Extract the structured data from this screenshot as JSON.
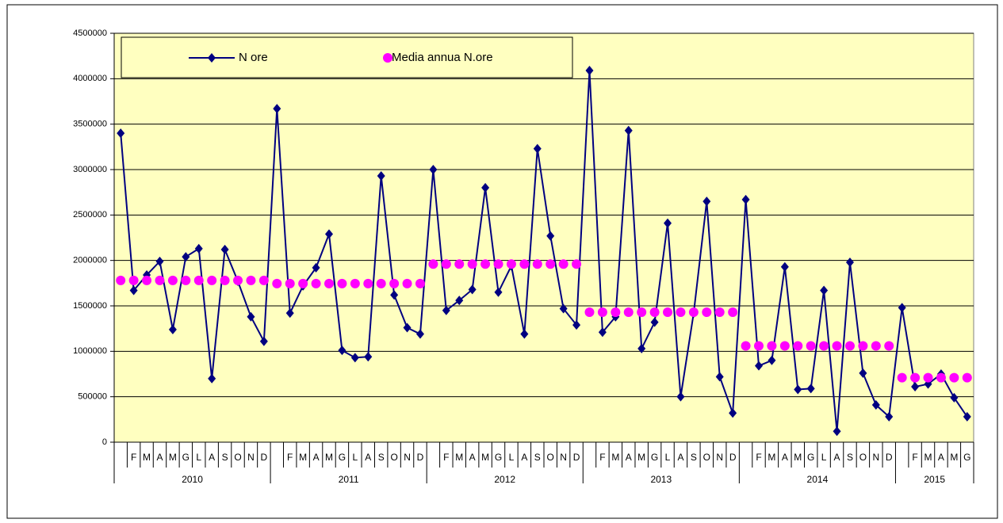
{
  "chart_data": {
    "type": "line",
    "categories": [
      null,
      "F",
      "M",
      "A",
      "M",
      "G",
      "L",
      "A",
      "S",
      "O",
      "N",
      "D",
      null,
      "F",
      "M",
      "A",
      "M",
      "G",
      "L",
      "A",
      "S",
      "O",
      "N",
      "D",
      null,
      "F",
      "M",
      "A",
      "M",
      "G",
      "L",
      "A",
      "S",
      "O",
      "N",
      "D",
      null,
      "F",
      "M",
      "A",
      "M",
      "G",
      "L",
      "A",
      "S",
      "O",
      "N",
      "D",
      null,
      "F",
      "M",
      "A",
      "M",
      "G",
      "L",
      "A",
      "S",
      "O",
      "N",
      "D",
      null,
      "F",
      "M",
      "A",
      "M",
      "G"
    ],
    "years": [
      "2010",
      "2011",
      "2012",
      "2013",
      "2014",
      "2015"
    ],
    "series": [
      {
        "name": "N ore",
        "color": "#000080",
        "marker": "diamond",
        "line": true,
        "values": [
          3400000,
          1670000,
          1840000,
          1990000,
          1240000,
          2040000,
          2130000,
          700000,
          2120000,
          1770000,
          1380000,
          1110000,
          3670000,
          1420000,
          1720000,
          1920000,
          2290000,
          1010000,
          930000,
          940000,
          2930000,
          1620000,
          1260000,
          1190000,
          3000000,
          1450000,
          1560000,
          1680000,
          2800000,
          1650000,
          1940000,
          1190000,
          3230000,
          2270000,
          1470000,
          1290000,
          4090000,
          1210000,
          1380000,
          3430000,
          1030000,
          1320000,
          2410000,
          500000,
          1420000,
          2650000,
          720000,
          320000,
          2670000,
          840000,
          900000,
          1930000,
          580000,
          590000,
          1670000,
          120000,
          1980000,
          760000,
          410000,
          280000,
          1480000,
          610000,
          640000,
          750000,
          490000,
          280000
        ]
      },
      {
        "name": "Media annua N.ore",
        "color": "#ff00ff",
        "marker": "circle",
        "line": false,
        "values": [
          1780000,
          1780000,
          1780000,
          1780000,
          1780000,
          1780000,
          1780000,
          1780000,
          1780000,
          1780000,
          1780000,
          1780000,
          1745000,
          1745000,
          1745000,
          1745000,
          1745000,
          1745000,
          1745000,
          1745000,
          1745000,
          1745000,
          1745000,
          1745000,
          1960000,
          1960000,
          1960000,
          1960000,
          1960000,
          1960000,
          1960000,
          1960000,
          1960000,
          1960000,
          1960000,
          1960000,
          1430000,
          1430000,
          1430000,
          1430000,
          1430000,
          1430000,
          1430000,
          1430000,
          1430000,
          1430000,
          1430000,
          1430000,
          1060000,
          1060000,
          1060000,
          1060000,
          1060000,
          1060000,
          1060000,
          1060000,
          1060000,
          1060000,
          1060000,
          1060000,
          710000,
          710000,
          710000,
          710000,
          710000,
          710000
        ]
      }
    ],
    "ylim": [
      0,
      4500000
    ],
    "yticks": [
      0,
      500000,
      1000000,
      1500000,
      2000000,
      2500000,
      3000000,
      3500000,
      4000000,
      4500000
    ],
    "grid": true,
    "plot_background": "#ffffc0",
    "legend": "top-left"
  }
}
